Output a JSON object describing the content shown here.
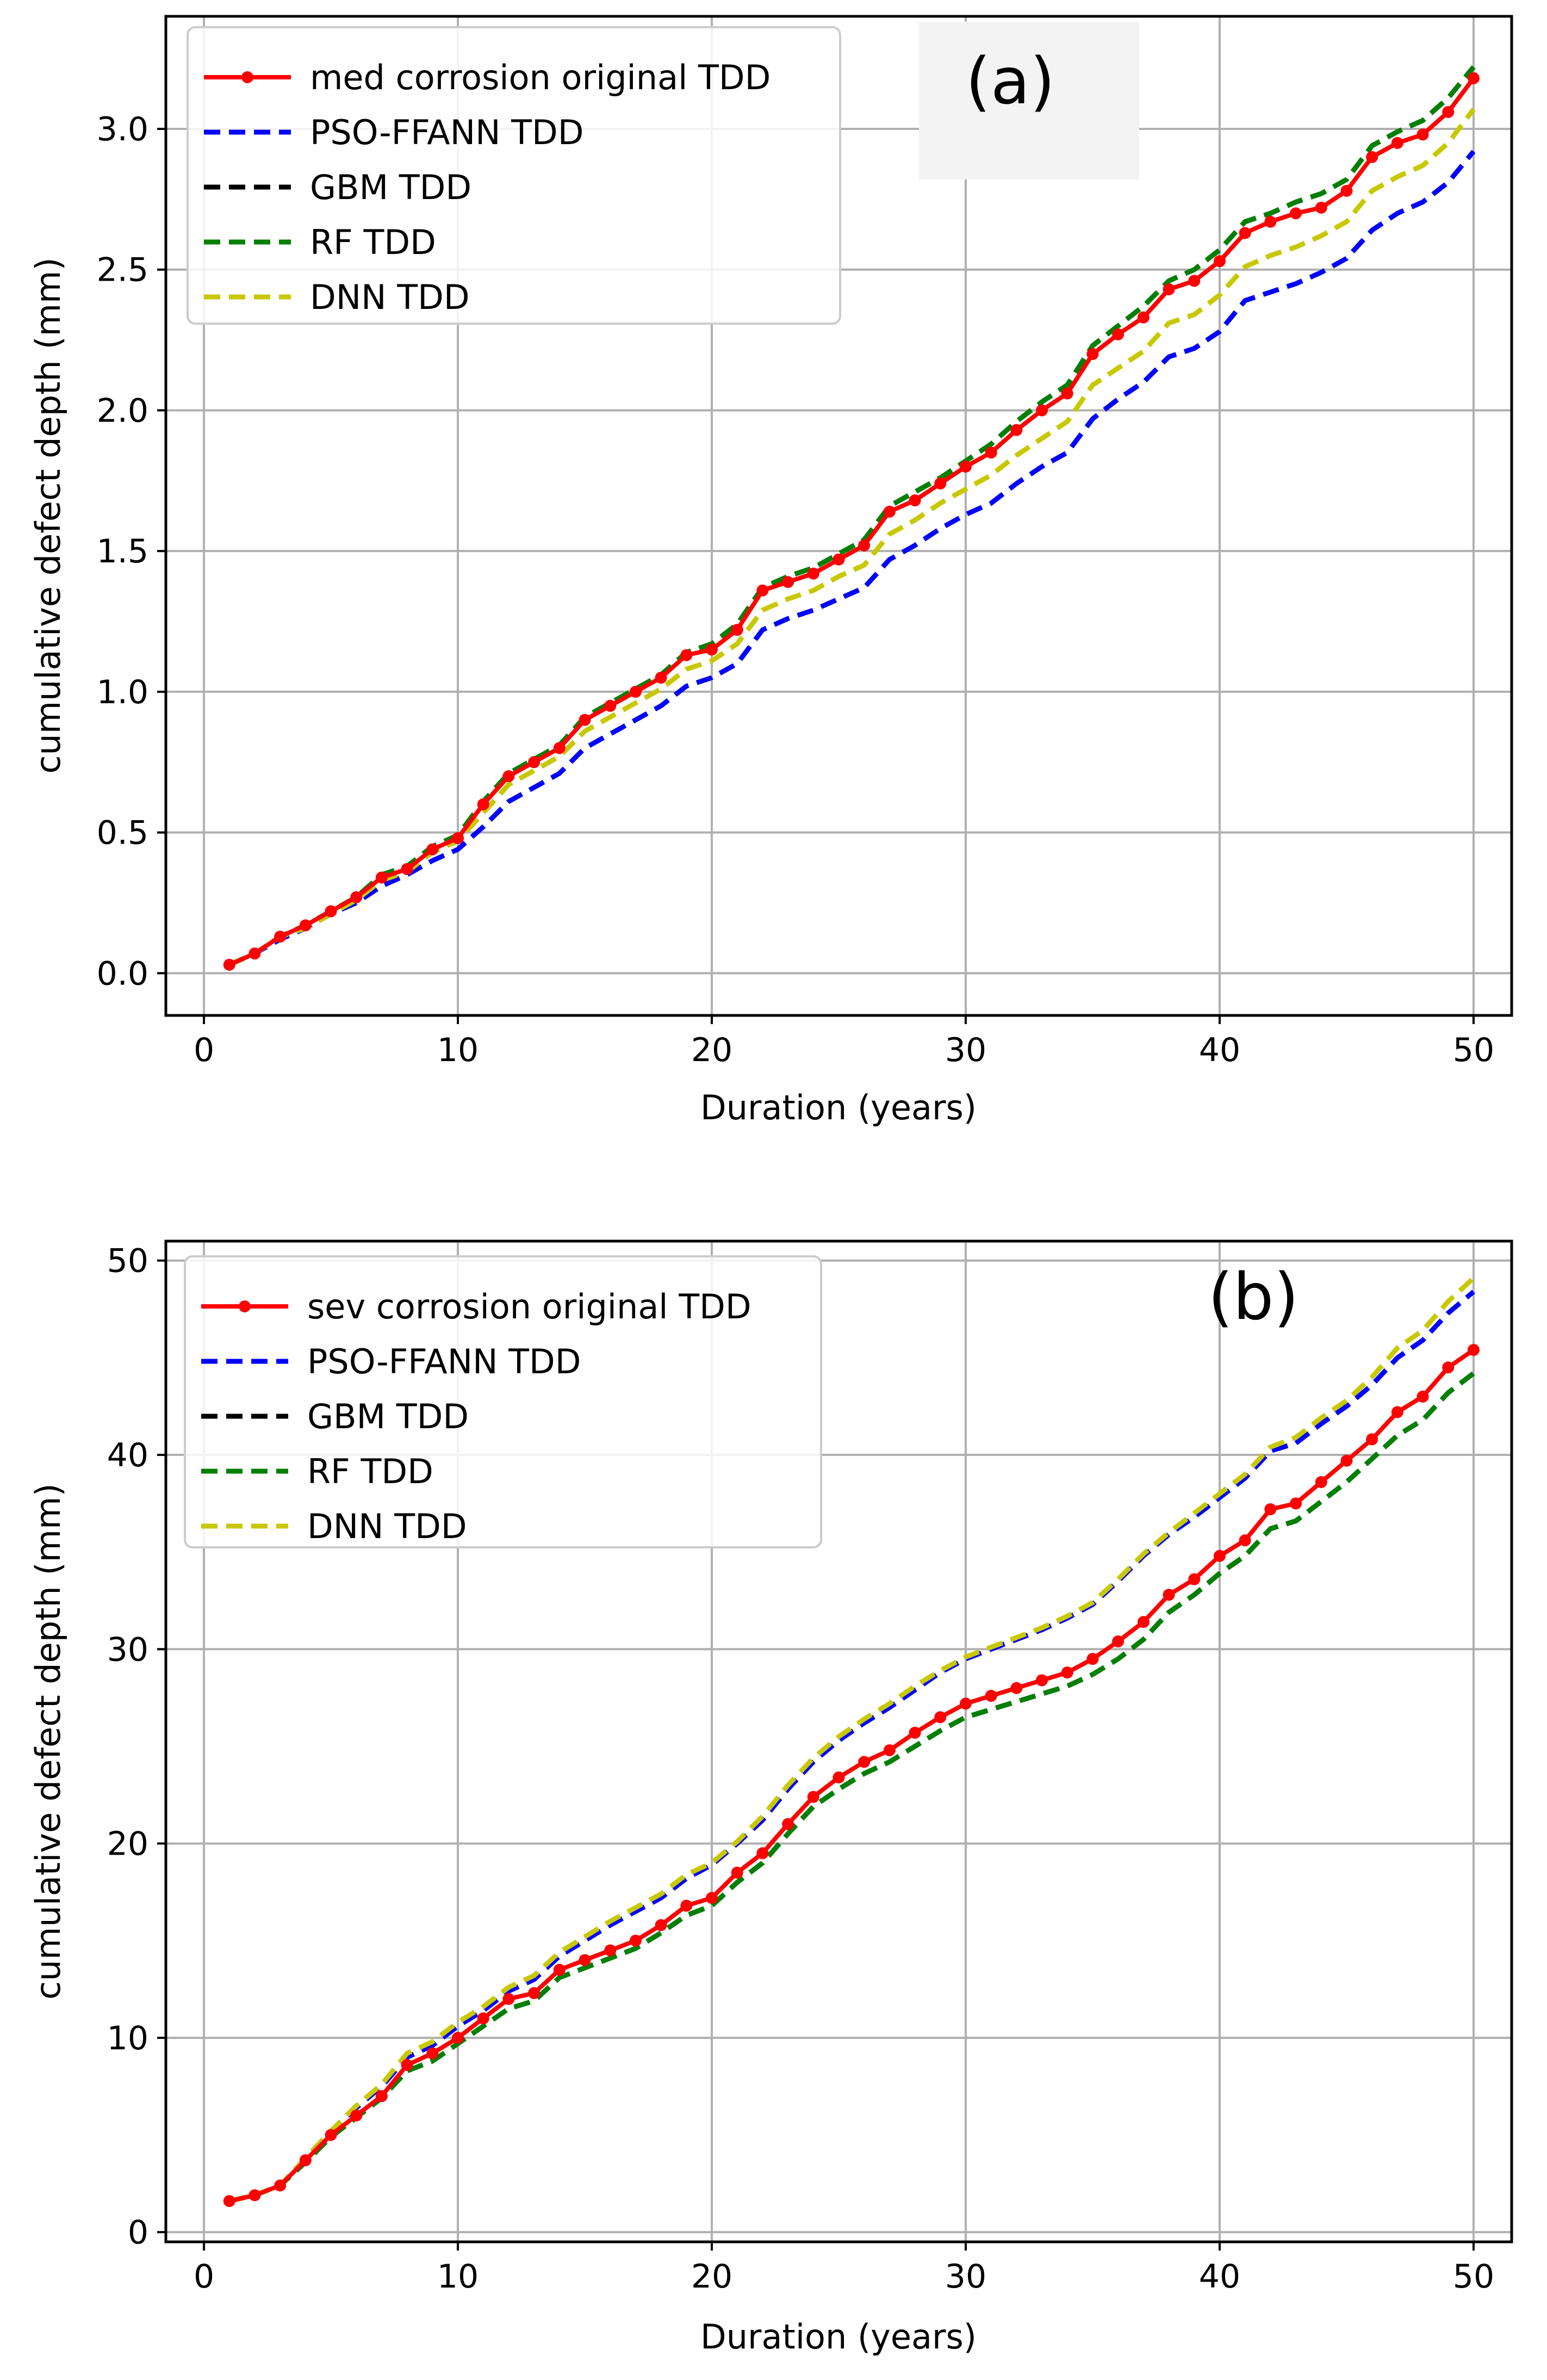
{
  "chart_data": [
    {
      "id": "a",
      "type": "line",
      "panel_label": "(a)",
      "xlabel": "Duration (years)",
      "ylabel": "cumulative defect depth (mm)",
      "xlim": [
        -1.5,
        51.5
      ],
      "ylim": [
        -0.15,
        3.4
      ],
      "xticks": [
        0,
        10,
        20,
        30,
        40,
        50
      ],
      "yticks": [
        0.0,
        0.5,
        1.0,
        1.5,
        2.0,
        2.5,
        3.0
      ],
      "ytick_labels": [
        "0.0",
        "0.5",
        "1.0",
        "1.5",
        "2.0",
        "2.5",
        "3.0"
      ],
      "grid": true,
      "legend_position": "top-left",
      "x": [
        1,
        2,
        3,
        4,
        5,
        6,
        7,
        8,
        9,
        10,
        11,
        12,
        13,
        14,
        15,
        16,
        17,
        18,
        19,
        20,
        21,
        22,
        23,
        24,
        25,
        26,
        27,
        28,
        29,
        30,
        31,
        32,
        33,
        34,
        35,
        36,
        37,
        38,
        39,
        40,
        41,
        42,
        43,
        44,
        45,
        46,
        47,
        48,
        49,
        50
      ],
      "series": [
        {
          "name": "med corrosion original TDD",
          "color": "#ff0000",
          "style": "solid-markers",
          "values": [
            0.03,
            0.07,
            0.13,
            0.17,
            0.22,
            0.27,
            0.34,
            0.37,
            0.44,
            0.48,
            0.6,
            0.7,
            0.75,
            0.8,
            0.9,
            0.95,
            1.0,
            1.05,
            1.13,
            1.15,
            1.22,
            1.36,
            1.39,
            1.42,
            1.47,
            1.52,
            1.64,
            1.68,
            1.74,
            1.8,
            1.85,
            1.93,
            2.0,
            2.06,
            2.2,
            2.27,
            2.33,
            2.43,
            2.46,
            2.53,
            2.63,
            2.67,
            2.7,
            2.72,
            2.78,
            2.9,
            2.95,
            2.98,
            3.06,
            3.18
          ]
        },
        {
          "name": "PSO-FFANN TDD",
          "color": "#0000ff",
          "style": "dashed",
          "values": [
            0.03,
            0.07,
            0.12,
            0.16,
            0.21,
            0.25,
            0.31,
            0.35,
            0.4,
            0.44,
            0.52,
            0.61,
            0.66,
            0.71,
            0.8,
            0.85,
            0.9,
            0.95,
            1.02,
            1.05,
            1.1,
            1.22,
            1.26,
            1.29,
            1.33,
            1.37,
            1.47,
            1.52,
            1.58,
            1.63,
            1.67,
            1.74,
            1.8,
            1.85,
            1.97,
            2.04,
            2.1,
            2.19,
            2.22,
            2.28,
            2.39,
            2.42,
            2.45,
            2.49,
            2.54,
            2.64,
            2.7,
            2.74,
            2.81,
            2.92
          ]
        },
        {
          "name": "GBM TDD",
          "color": "#000000",
          "style": "dashed",
          "values": [
            0.03,
            0.07,
            0.13,
            0.17,
            0.22,
            0.27,
            0.35,
            0.38,
            0.45,
            0.49,
            0.61,
            0.71,
            0.76,
            0.81,
            0.91,
            0.96,
            1.01,
            1.06,
            1.14,
            1.17,
            1.24,
            1.37,
            1.41,
            1.44,
            1.49,
            1.54,
            1.66,
            1.71,
            1.76,
            1.82,
            1.88,
            1.96,
            2.03,
            2.09,
            2.23,
            2.3,
            2.37,
            2.46,
            2.5,
            2.57,
            2.67,
            2.7,
            2.74,
            2.77,
            2.82,
            2.94,
            2.99,
            3.03,
            3.11,
            3.22
          ]
        },
        {
          "name": "RF TDD",
          "color": "#008000",
          "style": "dashed",
          "values": [
            0.03,
            0.07,
            0.13,
            0.17,
            0.22,
            0.27,
            0.35,
            0.38,
            0.45,
            0.49,
            0.61,
            0.71,
            0.76,
            0.81,
            0.91,
            0.96,
            1.01,
            1.06,
            1.14,
            1.17,
            1.24,
            1.37,
            1.41,
            1.44,
            1.49,
            1.54,
            1.66,
            1.71,
            1.76,
            1.82,
            1.88,
            1.96,
            2.03,
            2.09,
            2.23,
            2.3,
            2.37,
            2.46,
            2.5,
            2.57,
            2.67,
            2.7,
            2.74,
            2.77,
            2.82,
            2.94,
            2.99,
            3.03,
            3.11,
            3.22
          ]
        },
        {
          "name": "DNN TDD",
          "color": "#c8c800",
          "style": "dashed",
          "values": [
            0.03,
            0.07,
            0.13,
            0.16,
            0.21,
            0.26,
            0.33,
            0.36,
            0.43,
            0.47,
            0.57,
            0.67,
            0.72,
            0.77,
            0.86,
            0.91,
            0.96,
            1.01,
            1.08,
            1.11,
            1.17,
            1.29,
            1.33,
            1.36,
            1.41,
            1.45,
            1.56,
            1.61,
            1.67,
            1.72,
            1.77,
            1.84,
            1.9,
            1.96,
            2.09,
            2.15,
            2.21,
            2.31,
            2.34,
            2.41,
            2.51,
            2.55,
            2.58,
            2.62,
            2.67,
            2.78,
            2.83,
            2.87,
            2.95,
            3.07
          ]
        }
      ]
    },
    {
      "id": "b",
      "type": "line",
      "panel_label": "(b)",
      "xlabel": "Duration (years)",
      "ylabel": "cumulative defect depth (mm)",
      "xlim": [
        -1.5,
        51.5
      ],
      "ylim": [
        -0.5,
        51
      ],
      "xticks": [
        0,
        10,
        20,
        30,
        40,
        50
      ],
      "yticks": [
        0,
        10,
        20,
        30,
        40,
        50
      ],
      "ytick_labels": [
        "0",
        "10",
        "20",
        "30",
        "40",
        "50"
      ],
      "grid": true,
      "legend_position": "top-left",
      "x": [
        1,
        2,
        3,
        4,
        5,
        6,
        7,
        8,
        9,
        10,
        11,
        12,
        13,
        14,
        15,
        16,
        17,
        18,
        19,
        20,
        21,
        22,
        23,
        24,
        25,
        26,
        27,
        28,
        29,
        30,
        31,
        32,
        33,
        34,
        35,
        36,
        37,
        38,
        39,
        40,
        41,
        42,
        43,
        44,
        45,
        46,
        47,
        48,
        49,
        50
      ],
      "series": [
        {
          "name": "sev corrosion original TDD",
          "color": "#ff0000",
          "style": "solid-markers",
          "values": [
            1.6,
            1.9,
            2.4,
            3.7,
            5.0,
            6.0,
            7.0,
            8.6,
            9.2,
            10.0,
            11.0,
            12.0,
            12.3,
            13.5,
            14.0,
            14.5,
            15.0,
            15.8,
            16.8,
            17.2,
            18.5,
            19.5,
            21.0,
            22.4,
            23.4,
            24.2,
            24.8,
            25.7,
            26.5,
            27.2,
            27.6,
            28.0,
            28.4,
            28.8,
            29.5,
            30.4,
            31.4,
            32.8,
            33.6,
            34.8,
            35.6,
            37.2,
            37.5,
            38.6,
            39.7,
            40.8,
            42.2,
            43.0,
            44.5,
            45.4
          ]
        },
        {
          "name": "PSO-FFANN TDD",
          "color": "#0000ff",
          "style": "dashed",
          "values": [
            1.6,
            1.9,
            2.4,
            3.8,
            5.2,
            6.4,
            7.5,
            9.0,
            9.6,
            10.6,
            11.4,
            12.4,
            13.0,
            14.2,
            15.0,
            15.8,
            16.5,
            17.2,
            18.2,
            18.9,
            20.0,
            21.2,
            22.8,
            24.2,
            25.3,
            26.2,
            27.0,
            27.9,
            28.8,
            29.5,
            30.0,
            30.5,
            31.0,
            31.6,
            32.3,
            33.5,
            34.8,
            35.9,
            36.8,
            37.8,
            38.8,
            40.2,
            40.6,
            41.6,
            42.5,
            43.6,
            45.0,
            45.9,
            47.3,
            48.4
          ]
        },
        {
          "name": "GBM TDD",
          "color": "#000000",
          "style": "dashed",
          "values": [
            1.6,
            1.9,
            2.4,
            3.6,
            4.9,
            5.9,
            6.9,
            8.3,
            8.8,
            9.7,
            10.6,
            11.5,
            11.9,
            13.1,
            13.6,
            14.1,
            14.6,
            15.4,
            16.3,
            16.8,
            18.0,
            19.0,
            20.5,
            21.9,
            22.8,
            23.6,
            24.2,
            25.0,
            25.8,
            26.5,
            26.9,
            27.3,
            27.7,
            28.1,
            28.7,
            29.5,
            30.5,
            31.9,
            32.8,
            33.9,
            34.8,
            36.2,
            36.6,
            37.6,
            38.6,
            39.8,
            41.0,
            41.8,
            43.2,
            44.2
          ]
        },
        {
          "name": "RF TDD",
          "color": "#008000",
          "style": "dashed",
          "values": [
            1.6,
            1.9,
            2.4,
            3.6,
            4.9,
            5.9,
            6.9,
            8.3,
            8.8,
            9.7,
            10.6,
            11.5,
            11.9,
            13.1,
            13.6,
            14.1,
            14.6,
            15.4,
            16.3,
            16.8,
            18.0,
            19.0,
            20.5,
            21.9,
            22.8,
            23.6,
            24.2,
            25.0,
            25.8,
            26.5,
            26.9,
            27.3,
            27.7,
            28.1,
            28.7,
            29.5,
            30.5,
            31.9,
            32.8,
            33.9,
            34.8,
            36.2,
            36.6,
            37.6,
            38.6,
            39.8,
            41.0,
            41.8,
            43.2,
            44.2
          ]
        },
        {
          "name": "DNN TDD",
          "color": "#c8c800",
          "style": "dashed",
          "values": [
            1.6,
            1.9,
            2.4,
            3.8,
            5.2,
            6.5,
            7.6,
            9.2,
            9.8,
            10.8,
            11.6,
            12.6,
            13.2,
            14.4,
            15.2,
            16.0,
            16.7,
            17.4,
            18.4,
            19.0,
            20.1,
            21.4,
            23.0,
            24.4,
            25.5,
            26.4,
            27.2,
            28.1,
            28.9,
            29.6,
            30.1,
            30.6,
            31.1,
            31.7,
            32.4,
            33.6,
            34.9,
            36.0,
            37.0,
            38.0,
            39.0,
            40.4,
            40.9,
            41.9,
            42.8,
            44.0,
            45.5,
            46.4,
            47.9,
            49.1
          ]
        }
      ]
    }
  ]
}
